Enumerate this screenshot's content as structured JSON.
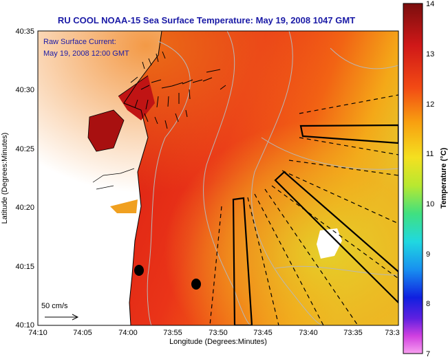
{
  "title": "RU COOL  NOAA-15  Sea Surface Temperature:  May 19, 2008 1047 GMT",
  "current_label_1": "Raw Surface Current:",
  "current_label_2": "May 19, 2008 12:00 GMT",
  "scale_label": "50 cm/s",
  "xlabel": "Longitude (Degrees:Minutes)",
  "ylabel": "Latitude (Degrees:Minutes)",
  "x_ticks": [
    "74:10",
    "74:05",
    "74:00",
    "73:55",
    "73:50",
    "73:45",
    "73:40",
    "73:35",
    "73:3"
  ],
  "y_ticks": [
    "40:35",
    "40:30",
    "40:25",
    "40:20",
    "40:15",
    "40:10"
  ],
  "colorbar": {
    "label": "Temperature (°C)",
    "ticks": [
      "14",
      "13",
      "12",
      "11",
      "10",
      "9",
      "8",
      "7"
    ],
    "range": [
      7,
      14
    ]
  },
  "colors": {
    "title": "#1a1aa6",
    "sea_warm": "#e8301c",
    "sea_mid": "#f26a10",
    "sea_cool": "#e8c020",
    "land": "#ffffff"
  }
}
